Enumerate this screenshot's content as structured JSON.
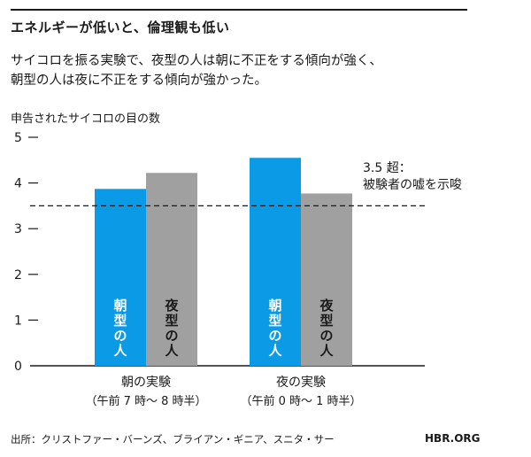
{
  "title": "エネルギーが低いと、倫理観も低い",
  "subtitle_lines": [
    "サイコロを振る実験で、夜型の人は朝に不正をする傾向が強く、",
    "朝型の人は夜に不正をする傾向が強かった。"
  ],
  "source": "出所：クリストファー・バーンズ、ブライアン・ギニア、スニタ・サー",
  "brand": "HBR.ORG",
  "colors": {
    "morning": "#0a9ae6",
    "evening": "#a0a0a0",
    "axis": "#1a1a1a",
    "bar_label": "#1a1a1a",
    "bar_label_on_blue": "#ffffff"
  },
  "chart_data": {
    "type": "bar",
    "ylabel": "申告されたサイコロの目の数",
    "ylim": [
      0,
      5
    ],
    "yticks": [
      "0",
      "1",
      "2",
      "3",
      "4",
      "5"
    ],
    "categories": [
      {
        "line1": "朝の実験",
        "line2": "（午前 7 時〜 8 時半）"
      },
      {
        "line1": "夜の実験",
        "line2": "（午前 0 時〜 1 時半）"
      }
    ],
    "series": [
      {
        "name": "朝型の人",
        "values": [
          3.87,
          4.55
        ]
      },
      {
        "name": "夜型の人",
        "values": [
          4.22,
          3.77
        ]
      }
    ],
    "reference_line": {
      "value": 3.5,
      "label_lines": [
        "3.5 超：",
        "被験者の嘘を示唆"
      ]
    }
  }
}
